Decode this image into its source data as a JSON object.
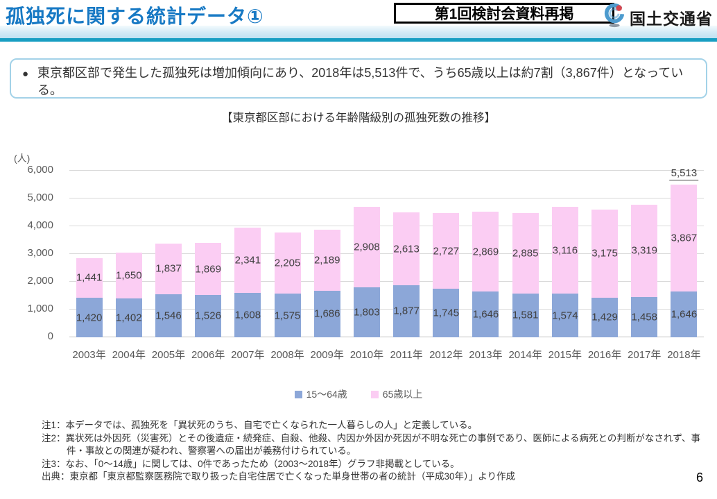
{
  "header": {
    "title": "孤独死に関する統計データ①",
    "badge": "第1回検討会資料再掲",
    "ministry": "国土交通省"
  },
  "summary": {
    "bullet": "●",
    "text": "東京都区部で発生した孤独死は増加傾向にあり、2018年は5,513件で、うち65歳以上は約7割（3,867件）となっている。"
  },
  "chart_data": {
    "type": "bar",
    "stacked": true,
    "title": "【東京都区部における年齢階級別の孤独死数の推移】",
    "unit_label": "(人)",
    "categories": [
      "2003年",
      "2004年",
      "2005年",
      "2006年",
      "2007年",
      "2008年",
      "2009年",
      "2010年",
      "2011年",
      "2012年",
      "2013年",
      "2014年",
      "2015年",
      "2016年",
      "2017年",
      "2018年"
    ],
    "series": [
      {
        "name": "15～64歳",
        "color": "#8CA7D8",
        "values": [
          1420,
          1402,
          1546,
          1526,
          1608,
          1575,
          1686,
          1803,
          1877,
          1745,
          1646,
          1581,
          1574,
          1429,
          1458,
          1646
        ]
      },
      {
        "name": "65歳以上",
        "color": "#FBCDF3",
        "values": [
          1441,
          1650,
          1837,
          1869,
          2341,
          2205,
          2189,
          2908,
          2613,
          2727,
          2869,
          2885,
          3116,
          3175,
          3319,
          3867
        ]
      }
    ],
    "total_label": {
      "category_index": 15,
      "value": 5513,
      "text": "5,513",
      "underline": true
    },
    "ylim": [
      0,
      6000
    ],
    "ytick_step": 1000,
    "yticks": [
      "6,000",
      "5,000",
      "4,000",
      "3,000",
      "2,000",
      "1,000",
      "0"
    ],
    "grid": true,
    "legend_position": "bottom"
  },
  "notes": [
    {
      "text": "注1：本データでは、孤独死を「異状死のうち、自宅で亡くなられた一人暮らしの人」と定義している。",
      "indent": false
    },
    {
      "text": "注2：異状死は外因死（災害死）とその後遺症・続発症、自殺、他殺、内因か外因か死因が不明な死亡の事例であり、医師による病死との判断がなされず、事",
      "indent": false
    },
    {
      "text": "件・事故との関連が疑われ、警察署への届出が義務付けられている。",
      "indent": true
    },
    {
      "text": "注3：なお、「0～14歳」に関しては、0件であったため（2003～2018年）グラフ非掲載としている。",
      "indent": false
    },
    {
      "text": "出典：東京都「東京都監察医務院で取り扱った自宅住居で亡くなった単身世帯の者の統計（平成30年）」より作成",
      "indent": false
    }
  ],
  "page_number": "6",
  "colors": {
    "title_blue": "#1779C4",
    "header_rule_teal": "#189EC2",
    "box_border_blue": "#A3D2E8",
    "bar_blue": "#8CA7D8",
    "bar_pink": "#FBCDF3",
    "gridline": "#d9d9d9",
    "label_text": "#404040",
    "axis_text": "#595959"
  }
}
